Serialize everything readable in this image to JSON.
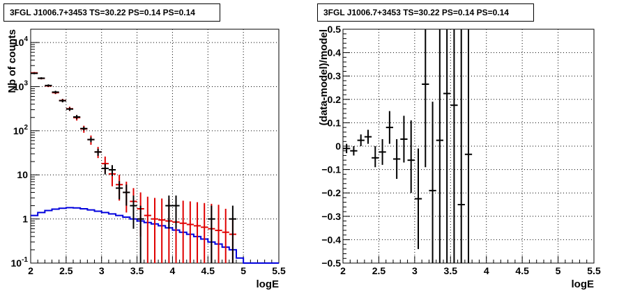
{
  "colors": {
    "data": "#000000",
    "model_points": "#e00000",
    "source_model": "#0000dd",
    "grid": "#000000"
  },
  "chart_data": [
    {
      "type": "scatter",
      "title": "3FGL J1006.7+3453 TS=30.22 PS=0.14 PS=0.14",
      "xlabel": "logE",
      "ylabel": "Nb of counts",
      "xlim": [
        2,
        5.5
      ],
      "ylim": [
        0.1,
        20000
      ],
      "yscale": "log",
      "grid": true,
      "x_ticks": [
        "2",
        "2.5",
        "3",
        "3.5",
        "4",
        "4.5",
        "5",
        "5.5"
      ],
      "y_ticks": [
        "10^{-1}",
        "1",
        "10",
        "10^{2}",
        "10^{3}",
        "10^{4}"
      ],
      "series": [
        {
          "style": "black-error-bars",
          "points": [
            {
              "x": 2.05,
              "y": 2000,
              "lo": 1910,
              "hi": 2090
            },
            {
              "x": 2.15,
              "y": 1550,
              "lo": 1470,
              "hi": 1630
            },
            {
              "x": 2.25,
              "y": 1060,
              "lo": 995,
              "hi": 1125
            },
            {
              "x": 2.35,
              "y": 750,
              "lo": 695,
              "hi": 805
            },
            {
              "x": 2.45,
              "y": 480,
              "lo": 440,
              "hi": 520
            },
            {
              "x": 2.55,
              "y": 310,
              "lo": 283,
              "hi": 337
            },
            {
              "x": 2.65,
              "y": 205,
              "lo": 183,
              "hi": 227
            },
            {
              "x": 2.75,
              "y": 112,
              "lo": 101,
              "hi": 123
            },
            {
              "x": 2.85,
              "y": 63,
              "lo": 55,
              "hi": 71
            },
            {
              "x": 2.95,
              "y": 33,
              "lo": 27,
              "hi": 39
            },
            {
              "x": 3.05,
              "y": 14,
              "lo": 10.2,
              "hi": 17.8
            },
            {
              "x": 3.15,
              "y": 13,
              "lo": 9.4,
              "hi": 16.6
            },
            {
              "x": 3.25,
              "y": 5,
              "lo": 2.8,
              "hi": 7.2
            },
            {
              "x": 3.35,
              "y": 4,
              "lo": 2.0,
              "hi": 6.0
            },
            {
              "x": 3.45,
              "y": 2,
              "lo": 0.6,
              "hi": 3.4
            },
            {
              "x": 3.55,
              "y": 1,
              "lo": 0.1,
              "hi": 2.0
            },
            {
              "x": 3.95,
              "y": 2,
              "lo": 0.6,
              "hi": 3.4
            },
            {
              "x": 4.05,
              "y": 2,
              "lo": 0.6,
              "hi": 3.4
            },
            {
              "x": 4.55,
              "y": 1,
              "lo": 0.1,
              "hi": 2.0
            },
            {
              "x": 4.85,
              "y": 1,
              "lo": 0.1,
              "hi": 2.0
            }
          ]
        },
        {
          "style": "red-model-bars",
          "points": [
            {
              "x": 2.05,
              "y": 2050,
              "lo": 1955,
              "hi": 2145
            },
            {
              "x": 2.15,
              "y": 1540,
              "lo": 1460,
              "hi": 1620
            },
            {
              "x": 2.25,
              "y": 1040,
              "lo": 975,
              "hi": 1105
            },
            {
              "x": 2.35,
              "y": 730,
              "lo": 676,
              "hi": 784
            },
            {
              "x": 2.45,
              "y": 485,
              "lo": 441,
              "hi": 529
            },
            {
              "x": 2.55,
              "y": 315,
              "lo": 280,
              "hi": 350
            },
            {
              "x": 2.65,
              "y": 198,
              "lo": 170,
              "hi": 226
            },
            {
              "x": 2.75,
              "y": 110,
              "lo": 90,
              "hi": 130
            },
            {
              "x": 2.85,
              "y": 63,
              "lo": 48,
              "hi": 78
            },
            {
              "x": 2.95,
              "y": 33,
              "lo": 24,
              "hi": 43
            },
            {
              "x": 3.05,
              "y": 18,
              "lo": 11,
              "hi": 26
            },
            {
              "x": 3.15,
              "y": 10.5,
              "lo": 5.5,
              "hi": 16.5
            },
            {
              "x": 3.25,
              "y": 6,
              "lo": 2.6,
              "hi": 10
            },
            {
              "x": 3.35,
              "y": 4,
              "lo": 1.4,
              "hi": 7
            },
            {
              "x": 3.45,
              "y": 2.5,
              "lo": 0.8,
              "hi": 5
            },
            {
              "x": 3.55,
              "y": 1.7,
              "lo": 0.4,
              "hi": 4
            },
            {
              "x": 3.65,
              "y": 1.2,
              "lo": 0.1,
              "hi": 3.2
            },
            {
              "x": 3.75,
              "y": 1.0,
              "lo": 0.1,
              "hi": 3.0
            },
            {
              "x": 3.85,
              "y": 0.95,
              "lo": 0.1,
              "hi": 2.9
            },
            {
              "x": 3.95,
              "y": 0.9,
              "lo": 0.1,
              "hi": 2.8
            },
            {
              "x": 4.05,
              "y": 0.85,
              "lo": 0.1,
              "hi": 2.7
            },
            {
              "x": 4.15,
              "y": 0.8,
              "lo": 0.1,
              "hi": 2.6
            },
            {
              "x": 4.25,
              "y": 0.75,
              "lo": 0.1,
              "hi": 2.5
            },
            {
              "x": 4.35,
              "y": 0.7,
              "lo": 0.1,
              "hi": 2.4
            },
            {
              "x": 4.45,
              "y": 0.65,
              "lo": 0.1,
              "hi": 2.3
            },
            {
              "x": 4.55,
              "y": 0.6,
              "lo": 0.1,
              "hi": 2.2
            },
            {
              "x": 4.65,
              "y": 0.55,
              "lo": 0.1,
              "hi": 2.1
            },
            {
              "x": 4.75,
              "y": 0.5,
              "lo": 0.1,
              "hi": 1.7
            },
            {
              "x": 4.85,
              "y": 0.45,
              "lo": 0.1,
              "hi": 1.0
            }
          ]
        },
        {
          "style": "blue-step-line",
          "bin_edges": [
            2.0,
            2.1,
            2.2,
            2.3,
            2.4,
            2.5,
            2.6,
            2.7,
            2.8,
            2.9,
            3.0,
            3.1,
            3.2,
            3.3,
            3.4,
            3.5,
            3.6,
            3.7,
            3.8,
            3.9,
            4.0,
            4.1,
            4.2,
            4.3,
            4.4,
            4.5,
            4.6,
            4.7,
            4.8,
            4.9,
            5.0,
            5.1,
            5.2,
            5.3,
            5.4,
            5.5
          ],
          "values": [
            1.2,
            1.4,
            1.55,
            1.67,
            1.75,
            1.8,
            1.78,
            1.7,
            1.6,
            1.5,
            1.4,
            1.3,
            1.2,
            1.1,
            1.0,
            0.9,
            0.83,
            0.77,
            0.7,
            0.63,
            0.56,
            0.5,
            0.45,
            0.4,
            0.35,
            0.3,
            0.27,
            0.23,
            0.2,
            0.13,
            0.1,
            0.1,
            0.1,
            0.1,
            0.1
          ]
        }
      ]
    },
    {
      "type": "scatter",
      "title": "3FGL J1006.7+3453 TS=30.22 PS=0.14 PS=0.14",
      "xlabel": "logE",
      "ylabel": "(data-model)/model",
      "xlim": [
        2,
        5.5
      ],
      "ylim": [
        -0.5,
        0.5
      ],
      "grid": true,
      "x_ticks": [
        "2",
        "2.5",
        "3",
        "3.5",
        "4",
        "4.5",
        "5",
        "5.5"
      ],
      "y_ticks": [
        "−0.5",
        "−0.4",
        "−0.3",
        "−0.2",
        "−0.1",
        "0",
        "0.1",
        "0.2",
        "0.3",
        "0.4",
        "0.5"
      ],
      "series": [
        {
          "style": "black-error-bars",
          "points": [
            {
              "x": 2.05,
              "y": -0.01,
              "lo": -0.03,
              "hi": 0.01
            },
            {
              "x": 2.15,
              "y": -0.02,
              "lo": -0.04,
              "hi": 0.0
            },
            {
              "x": 2.25,
              "y": 0.025,
              "lo": 0.0,
              "hi": 0.05
            },
            {
              "x": 2.35,
              "y": 0.04,
              "lo": 0.01,
              "hi": 0.07
            },
            {
              "x": 2.45,
              "y": -0.05,
              "lo": -0.09,
              "hi": 0.0
            },
            {
              "x": 2.55,
              "y": -0.025,
              "lo": -0.08,
              "hi": 0.03
            },
            {
              "x": 2.65,
              "y": 0.08,
              "lo": 0.01,
              "hi": 0.15
            },
            {
              "x": 2.75,
              "y": -0.055,
              "lo": -0.14,
              "hi": 0.03
            },
            {
              "x": 2.85,
              "y": 0.03,
              "lo": -0.07,
              "hi": 0.13
            },
            {
              "x": 2.95,
              "y": -0.06,
              "lo": -0.2,
              "hi": 0.11
            },
            {
              "x": 3.05,
              "y": -0.225,
              "lo": -0.44,
              "hi": -0.01
            },
            {
              "x": 3.15,
              "y": 0.265,
              "lo": -0.09,
              "hi": 0.5
            },
            {
              "x": 3.25,
              "y": -0.19,
              "lo": -0.5,
              "hi": 0.19
            },
            {
              "x": 3.35,
              "y": 0.025,
              "lo": -0.5,
              "hi": 0.5
            },
            {
              "x": 3.45,
              "y": 0.225,
              "lo": -0.5,
              "hi": 0.5
            },
            {
              "x": 3.55,
              "y": 0.175,
              "lo": -0.5,
              "hi": 0.5
            },
            {
              "x": 3.65,
              "y": -0.25,
              "lo": -0.5,
              "hi": 0.5
            },
            {
              "x": 3.75,
              "y": -0.035,
              "lo": -0.5,
              "hi": 0.5
            }
          ]
        }
      ]
    }
  ]
}
